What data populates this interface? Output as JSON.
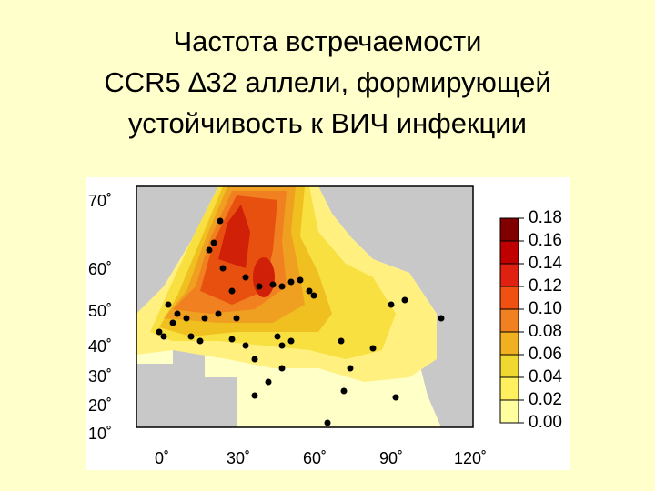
{
  "title": {
    "lines": [
      "Частота встречаемости",
      "CCR5 ∆32 аллели, формирующей",
      "устойчивость к ВИЧ инфекции"
    ]
  },
  "map": {
    "lat_labels": [
      "70˚",
      "60˚",
      "50˚",
      "40˚",
      "30˚",
      "20˚",
      "10˚"
    ],
    "lon_labels": [
      "0˚",
      "30˚",
      "60˚",
      "90˚",
      "120˚"
    ]
  },
  "colorbar": {
    "labels": [
      "0.18",
      "0.16",
      "0.14",
      "0.12",
      "0.10",
      "0.08",
      "0.06",
      "0.04",
      "0.02",
      "0.00"
    ]
  }
}
